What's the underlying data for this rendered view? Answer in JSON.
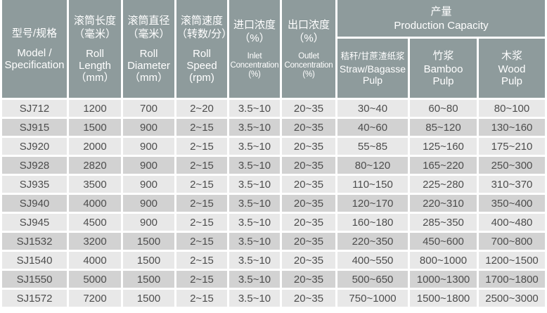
{
  "colors": {
    "header_bg": "#8E9B9C",
    "header_text": "#FFFFFF",
    "row_light": "#E8E8E8",
    "row_dark": "#D2D2D2",
    "grid": "#FFFFFF",
    "cell_text": "#4D4D4D"
  },
  "table": {
    "headers": [
      {
        "zh": "型号/规格",
        "en": "Model /\nSpecification"
      },
      {
        "zh": "滚筒长度\n（毫米）",
        "en": "Roll\nLength\n（mm）"
      },
      {
        "zh": "滚筒直径\n（毫米）",
        "en": "Roll\nDiameter\n（mm）"
      },
      {
        "zh": "滚筒速度\n（转数/分）",
        "en": "Roll\nSpeed\n(rpm)"
      },
      {
        "zh": "进口浓度\n（%）",
        "en": "Inlet\nConcentration\n(%)"
      },
      {
        "zh": "出口浓度\n（%）",
        "en": "Outlet\nConcentration\n(%)"
      }
    ],
    "capacity_group": {
      "zh": "产量",
      "en": "Production Capacity",
      "subheaders": [
        {
          "zh": "秸秆/甘蔗渣纸浆",
          "en": "Straw/Bagasse\nPulp"
        },
        {
          "zh": "竹浆",
          "en": "Bamboo\nPulp"
        },
        {
          "zh": "木浆",
          "en": "Wood\nPulp"
        }
      ]
    },
    "rows": [
      [
        "SJ712",
        "1200",
        "700",
        "2~20",
        "3.5~10",
        "20~35",
        "30~40",
        "60~80",
        "80~100"
      ],
      [
        "SJ915",
        "1500",
        "900",
        "2~15",
        "3.5~10",
        "20~35",
        "40~60",
        "85~120",
        "130~160"
      ],
      [
        "SJ920",
        "2000",
        "900",
        "2~15",
        "3.5~10",
        "20~35",
        "55~85",
        "125~160",
        "175~210"
      ],
      [
        "SJ928",
        "2820",
        "900",
        "2~15",
        "3.5~10",
        "20~35",
        "80~120",
        "165~220",
        "250~300"
      ],
      [
        "SJ935",
        "3500",
        "900",
        "2~15",
        "3.5~10",
        "20~35",
        "110~150",
        "225~280",
        "310~370"
      ],
      [
        "SJ940",
        "4000",
        "900",
        "2~15",
        "3.5~10",
        "20~35",
        "120~170",
        "220~310",
        "350~400"
      ],
      [
        "SJ945",
        "4500",
        "900",
        "2~15",
        "3.5~10",
        "20~35",
        "160~180",
        "285~350",
        "400~480"
      ],
      [
        "SJ1532",
        "3200",
        "1500",
        "2~15",
        "3.5~10",
        "20~35",
        "220~350",
        "450~600",
        "700~800"
      ],
      [
        "SJ1540",
        "4000",
        "1500",
        "2~15",
        "3.5~10",
        "20~35",
        "400~550",
        "800~1000",
        "1200~1500"
      ],
      [
        "SJ1550",
        "5000",
        "1500",
        "2~15",
        "3.5~10",
        "20~35",
        "500~650",
        "1000~1300",
        "1700~1800"
      ],
      [
        "SJ1572",
        "7200",
        "1500",
        "2~15",
        "3.5~10",
        "20~35",
        "750~1000",
        "1500~1800",
        "2500~3000"
      ]
    ]
  }
}
